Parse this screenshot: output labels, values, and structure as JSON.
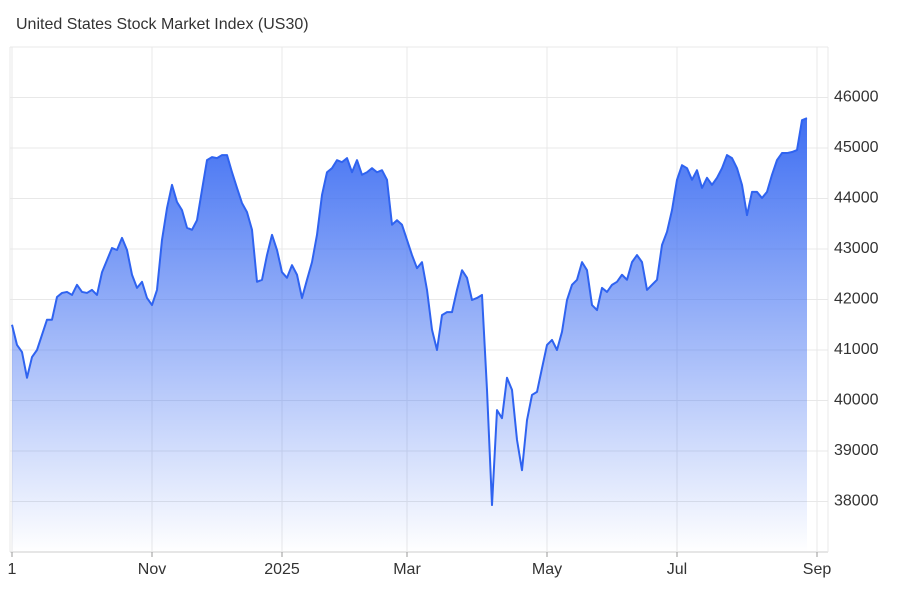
{
  "chart_data": {
    "type": "area",
    "title": "United States Stock Market Index (US30)",
    "color": "#2f63f0",
    "categories": [
      "1",
      null,
      null,
      null,
      null,
      null,
      null,
      null,
      null,
      null,
      null,
      null,
      null,
      null,
      null,
      null,
      null,
      null,
      null,
      null,
      null,
      null,
      null,
      null,
      null,
      null,
      null,
      null,
      "Nov",
      null,
      null,
      null,
      null,
      null,
      null,
      null,
      null,
      null,
      null,
      null,
      null,
      null,
      null,
      null,
      null,
      null,
      null,
      null,
      null,
      null,
      null,
      null,
      null,
      null,
      "2025",
      null,
      null,
      null,
      null,
      null,
      null,
      null,
      null,
      null,
      null,
      null,
      null,
      null,
      null,
      null,
      null,
      null,
      null,
      null,
      null,
      null,
      null,
      null,
      null,
      "Mar",
      null,
      null,
      null,
      null,
      null,
      null,
      null,
      null,
      null,
      null,
      null,
      null,
      null,
      null,
      null,
      null,
      null,
      null,
      null,
      null,
      null,
      null,
      null,
      null,
      null,
      null,
      null,
      "May",
      null,
      null,
      null,
      null,
      null,
      null,
      null,
      null,
      null,
      null,
      null,
      null,
      null,
      null,
      null,
      null,
      null,
      null,
      null,
      null,
      null,
      null,
      null,
      null,
      null,
      "Jul",
      null,
      null,
      null,
      null,
      null,
      null,
      null,
      null,
      null,
      null,
      null,
      null,
      null,
      null,
      null,
      null,
      null,
      null,
      null,
      null,
      null,
      null,
      null,
      null,
      null,
      null,
      null,
      "Sep"
    ],
    "values": [
      41500,
      41100,
      40960,
      40450,
      40860,
      41000,
      41300,
      41600,
      41600,
      42050,
      42130,
      42150,
      42090,
      42290,
      42150,
      42130,
      42190,
      42090,
      42540,
      42780,
      43020,
      42980,
      43220,
      42980,
      42490,
      42230,
      42350,
      42030,
      41890,
      42190,
      43180,
      43810,
      44270,
      43930,
      43770,
      43420,
      43380,
      43570,
      44170,
      44760,
      44820,
      44800,
      44860,
      44860,
      44520,
      44210,
      43910,
      43730,
      43380,
      42350,
      42390,
      42880,
      43280,
      42980,
      42540,
      42430,
      42680,
      42490,
      42030,
      42390,
      42740,
      43280,
      44070,
      44520,
      44600,
      44760,
      44720,
      44800,
      44520,
      44760,
      44470,
      44520,
      44600,
      44520,
      44560,
      44370,
      43480,
      43570,
      43480,
      43180,
      42880,
      42620,
      42740,
      42190,
      41400,
      41000,
      41690,
      41750,
      41750,
      42190,
      42580,
      42430,
      41990,
      42030,
      42090,
      40210,
      37930,
      39810,
      39650,
      40450,
      40210,
      39220,
      38620,
      39610,
      40110,
      40170,
      40640,
      41100,
      41200,
      41000,
      41360,
      41990,
      42290,
      42390,
      42740,
      42580,
      41890,
      41790,
      42230,
      42150,
      42290,
      42350,
      42490,
      42390,
      42740,
      42880,
      42740,
      42190,
      42290,
      42390,
      43080,
      43340,
      43770,
      44370,
      44660,
      44600,
      44370,
      44560,
      44210,
      44410,
      44270,
      44410,
      44600,
      44860,
      44800,
      44600,
      44270,
      43670,
      44130,
      44130,
      44010,
      44130,
      44470,
      44760,
      44900,
      44900,
      44920,
      44960,
      45550,
      45590,
      null,
      null
    ],
    "ylim": [
      37000,
      47000
    ],
    "yticks": [
      38000,
      39000,
      40000,
      41000,
      42000,
      43000,
      44000,
      45000,
      46000
    ],
    "grid": true
  }
}
